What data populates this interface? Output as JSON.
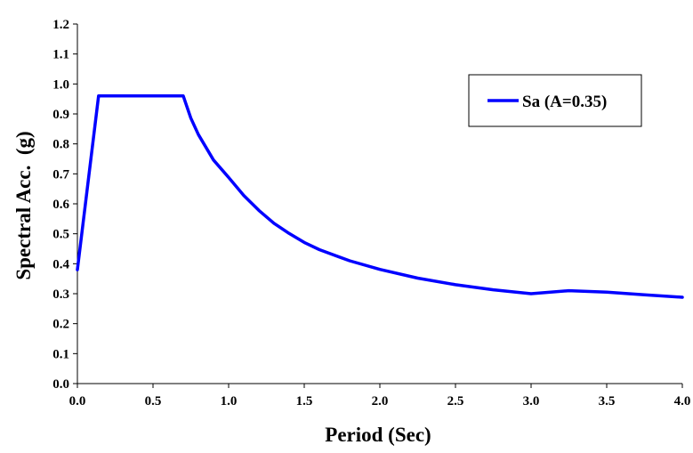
{
  "chart_data": {
    "type": "line",
    "title": "",
    "xlabel": "Period (Sec)",
    "ylabel": "Spectral Acc.  (g)",
    "xlim": [
      0,
      4
    ],
    "ylim": [
      0,
      1.2
    ],
    "x_ticks": [
      0,
      0.5,
      1,
      1.5,
      2,
      2.5,
      3,
      3.5,
      4
    ],
    "x_tick_labels": [
      "0.0",
      "0.5",
      "1.0",
      "1.5",
      "2.0",
      "2.5",
      "3.0",
      "3.5",
      "4.0"
    ],
    "y_ticks": [
      0,
      0.1,
      0.2,
      0.3,
      0.4,
      0.5,
      0.6,
      0.7,
      0.8,
      0.9,
      1.0,
      1.1,
      1.2
    ],
    "y_tick_labels": [
      "0.0",
      "0.1",
      "0.2",
      "0.3",
      "0.4",
      "0.5",
      "0.6",
      "0.7",
      "0.8",
      "0.9",
      "1.0",
      "1.1",
      "1.2"
    ],
    "grid": false,
    "legend_position": "top-right",
    "series": [
      {
        "name": "Sa (A=0.35)",
        "color": "#0000ff",
        "x": [
          0,
          0.14,
          0.7,
          0.75,
          0.8,
          0.9,
          1.0,
          1.1,
          1.2,
          1.3,
          1.4,
          1.5,
          1.6,
          1.8,
          2.0,
          2.25,
          2.5,
          2.75,
          3.0,
          3.25,
          3.5,
          3.75,
          4.0
        ],
        "y": [
          0.38,
          0.96,
          0.96,
          0.886,
          0.831,
          0.746,
          0.688,
          0.628,
          0.578,
          0.535,
          0.501,
          0.471,
          0.447,
          0.41,
          0.381,
          0.352,
          0.33,
          0.313,
          0.3,
          0.31,
          0.305,
          0.296,
          0.288
        ]
      }
    ]
  }
}
